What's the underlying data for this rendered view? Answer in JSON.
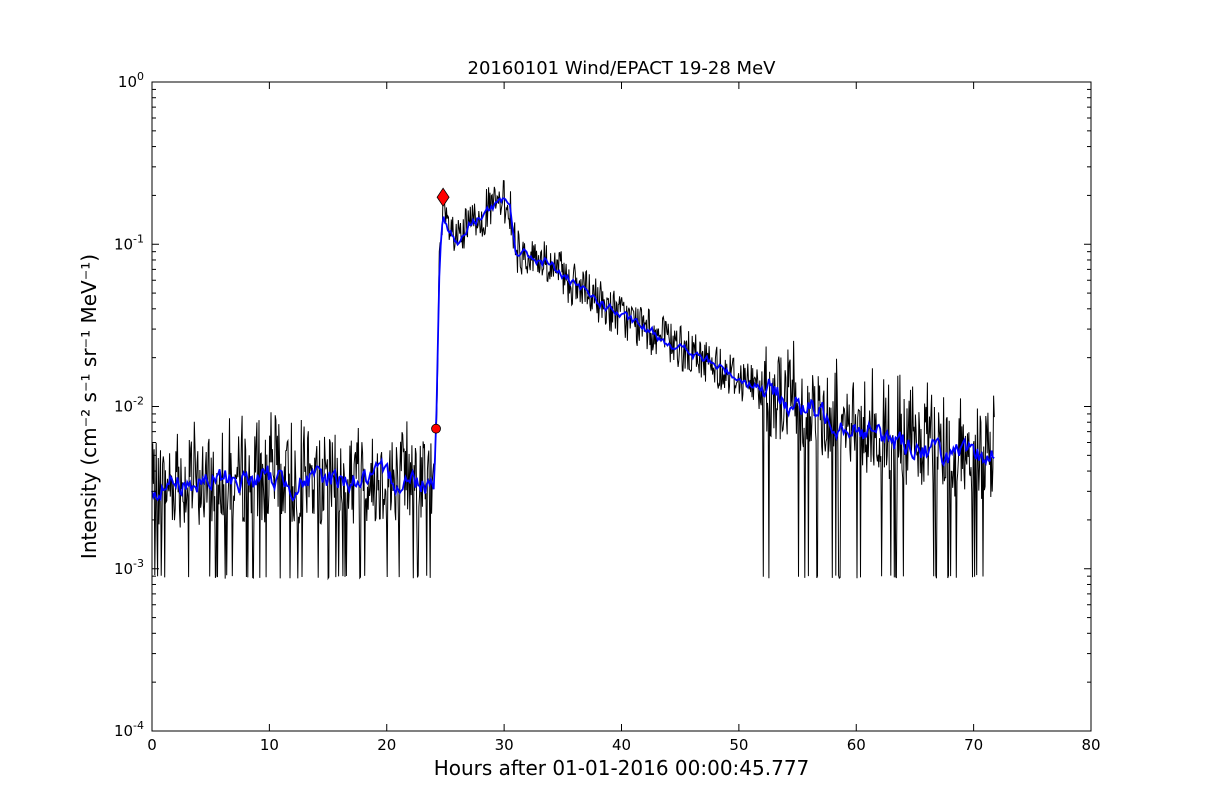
{
  "chart_data": {
    "type": "line",
    "title": "20160101 Wind/EPACT 19-28 MeV",
    "xlabel": "Hours after 01-01-2016 00:00:45.777",
    "ylabel": "Intensity (cm⁻² s⁻¹ sr⁻¹ MeV⁻¹)",
    "xlim": [
      0,
      80
    ],
    "ylim": [
      0.0001,
      1
    ],
    "yscale": "log",
    "grid": false,
    "x_ticks": [
      0,
      10,
      20,
      30,
      40,
      50,
      60,
      70,
      80
    ],
    "x_tick_labels": [
      "0",
      "10",
      "20",
      "30",
      "40",
      "50",
      "60",
      "70",
      "80"
    ],
    "y_ticks": [
      0.0001,
      0.001,
      0.01,
      0.1,
      1
    ],
    "y_tick_labels": [
      {
        "base": "10",
        "exp": "-4"
      },
      {
        "base": "10",
        "exp": "-3"
      },
      {
        "base": "10",
        "exp": "-2"
      },
      {
        "base": "10",
        "exp": "-1"
      },
      {
        "base": "10",
        "exp": "0"
      }
    ],
    "series": [
      {
        "role": "raw",
        "color": "#000000",
        "x": [
          0,
          2,
          4,
          6,
          8,
          10,
          12,
          14,
          16,
          18,
          20,
          22,
          24,
          24.2,
          24.5,
          24.8,
          25.2,
          26,
          27,
          28,
          29,
          30,
          30.5,
          31,
          32,
          34,
          36,
          38,
          40,
          42,
          44,
          46,
          48,
          50,
          52,
          54,
          56,
          58,
          60,
          62,
          64,
          66,
          68,
          70,
          71.8
        ],
        "y": [
          0.0032,
          0.0034,
          0.0033,
          0.0036,
          0.0035,
          0.0036,
          0.0034,
          0.0035,
          0.0036,
          0.0035,
          0.0036,
          0.0035,
          0.0035,
          0.0072,
          0.08,
          0.15,
          0.13,
          0.1,
          0.13,
          0.15,
          0.17,
          0.18,
          0.17,
          0.09,
          0.085,
          0.075,
          0.055,
          0.045,
          0.036,
          0.03,
          0.025,
          0.021,
          0.018,
          0.015,
          0.013,
          0.011,
          0.0095,
          0.0085,
          0.0075,
          0.0065,
          0.006,
          0.0055,
          0.005,
          0.0048,
          0.005
        ],
        "noise_range_low": 0.00087,
        "noise_range_high_background": 0.009
      },
      {
        "role": "smoothed",
        "color": "#0000ff",
        "x": [
          0,
          2,
          4,
          6,
          8,
          10,
          12,
          14,
          16,
          18,
          20,
          22,
          24,
          24.2,
          24.5,
          24.8,
          25.2,
          26,
          27,
          28,
          29,
          30,
          30.5,
          31,
          32,
          34,
          36,
          38,
          40,
          42,
          44,
          46,
          48,
          50,
          52,
          54,
          56,
          58,
          60,
          62,
          64,
          66,
          68,
          70,
          71.8
        ],
        "y": [
          0.0032,
          0.0034,
          0.0033,
          0.0036,
          0.0035,
          0.0036,
          0.0034,
          0.0035,
          0.0036,
          0.0035,
          0.0036,
          0.0035,
          0.0035,
          0.0072,
          0.08,
          0.15,
          0.13,
          0.1,
          0.13,
          0.15,
          0.17,
          0.18,
          0.17,
          0.09,
          0.085,
          0.075,
          0.055,
          0.045,
          0.036,
          0.03,
          0.025,
          0.021,
          0.018,
          0.015,
          0.013,
          0.011,
          0.0095,
          0.0085,
          0.0075,
          0.0065,
          0.006,
          0.0055,
          0.005,
          0.0048,
          0.005
        ]
      }
    ],
    "markers": [
      {
        "shape": "circle",
        "color": "#ff0000",
        "x": 24.2,
        "y": 0.0073
      },
      {
        "shape": "diamond",
        "color": "#ff0000",
        "x": 24.8,
        "y": 0.195
      }
    ]
  }
}
